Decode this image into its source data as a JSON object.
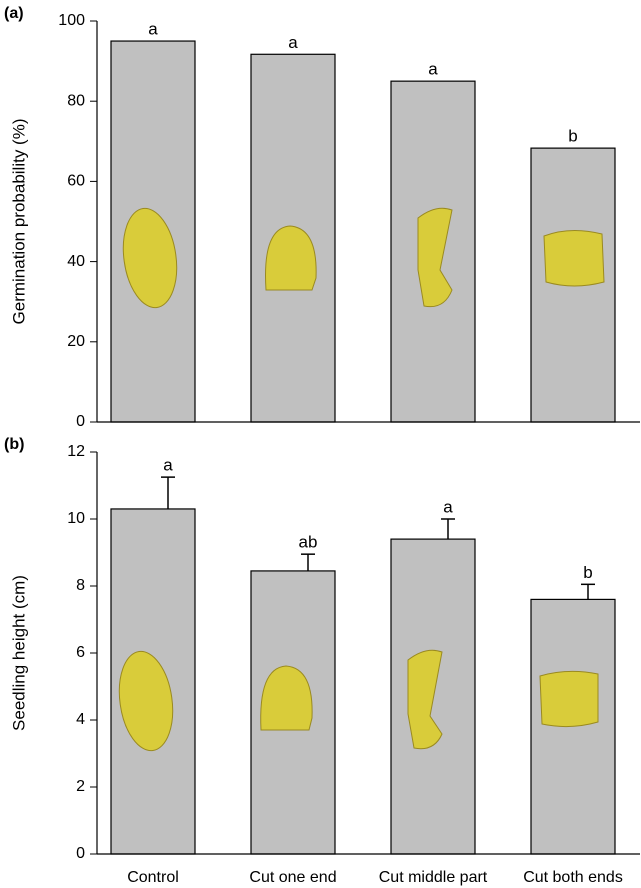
{
  "chart_data": [
    {
      "type": "bar",
      "panel_label": "(a)",
      "y_label": "Germination probability (%)",
      "categories": [
        null,
        null,
        null,
        null
      ],
      "values": [
        95,
        91.7,
        85,
        68.3
      ],
      "annotations": [
        "a",
        "a",
        "a",
        "b"
      ],
      "color": "#c0c0c0",
      "ylim": [
        0,
        100
      ],
      "yticks": [
        0,
        20,
        40,
        60,
        80,
        100
      ]
    },
    {
      "type": "bar",
      "panel_label": "(b)",
      "y_label": "Seedling height (cm)",
      "categories": [
        "Control",
        "Cut one end",
        "Cut middle part",
        "Cut both ends"
      ],
      "values": [
        10.3,
        8.45,
        9.4,
        7.6
      ],
      "errors": [
        0.95,
        0.5,
        0.6,
        0.45
      ],
      "annotations": [
        "a",
        "ab",
        "a",
        "b"
      ],
      "color": "#c0c0c0",
      "ylim": [
        0,
        12
      ],
      "yticks": [
        0,
        2,
        4,
        6,
        8,
        10,
        12
      ]
    }
  ]
}
